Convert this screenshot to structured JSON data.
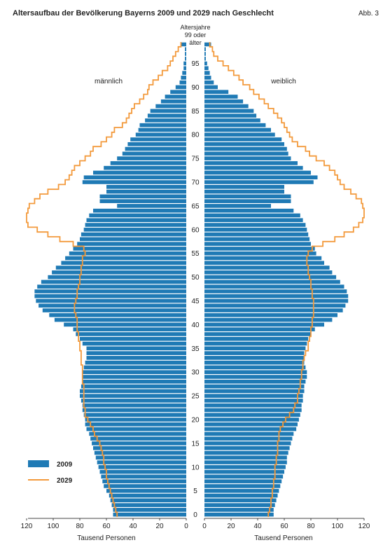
{
  "chart_data": {
    "type": "population-pyramid",
    "title": "Altersaufbau der Bevölkerung Bayerns 2009 und 2029 nach Geschlecht",
    "figure_label": "Abb. 3",
    "center_axis_label": [
      "Altersjahre",
      "99 oder",
      "älter"
    ],
    "left_label": "männlich",
    "right_label": "weiblich",
    "xlabel": "Tausend Personen",
    "x_ticks": [
      120,
      100,
      80,
      60,
      40,
      20,
      0
    ],
    "xlim": [
      0,
      120
    ],
    "age_ticks": [
      0,
      5,
      10,
      15,
      20,
      25,
      30,
      35,
      40,
      45,
      50,
      55,
      60,
      65,
      70,
      75,
      80,
      85,
      90,
      95
    ],
    "ages": [
      0,
      1,
      2,
      3,
      4,
      5,
      6,
      7,
      8,
      9,
      10,
      11,
      12,
      13,
      14,
      15,
      16,
      17,
      18,
      19,
      20,
      21,
      22,
      23,
      24,
      25,
      26,
      27,
      28,
      29,
      30,
      31,
      32,
      33,
      34,
      35,
      36,
      37,
      38,
      39,
      40,
      41,
      42,
      43,
      44,
      45,
      46,
      47,
      48,
      49,
      50,
      51,
      52,
      53,
      54,
      55,
      56,
      57,
      58,
      59,
      60,
      61,
      62,
      63,
      64,
      65,
      66,
      67,
      68,
      69,
      70,
      71,
      72,
      73,
      74,
      75,
      76,
      77,
      78,
      79,
      80,
      81,
      82,
      83,
      84,
      85,
      86,
      87,
      88,
      89,
      90,
      91,
      92,
      93,
      94,
      95,
      96,
      97,
      98,
      99
    ],
    "legend": [
      {
        "label": "2009",
        "color": "#1f7ab5"
      },
      {
        "label": "2029",
        "color": "#f39a3c"
      }
    ],
    "series": [
      {
        "name": "2009",
        "side": "männlich",
        "values": [
          55,
          55,
          56,
          57,
          58,
          60,
          62,
          63,
          64,
          65,
          66,
          67,
          68,
          69,
          70,
          71,
          72,
          73,
          75,
          76,
          76,
          77,
          78,
          78,
          79,
          80,
          80,
          79,
          78,
          78,
          78,
          77,
          76,
          75,
          75,
          75,
          78,
          80,
          83,
          85,
          92,
          99,
          103,
          108,
          111,
          113,
          114,
          114,
          112,
          109,
          104,
          101,
          98,
          94,
          91,
          88,
          85,
          82,
          80,
          79,
          77,
          76,
          75,
          73,
          70,
          52,
          65,
          65,
          60,
          60,
          78,
          77,
          70,
          62,
          57,
          52,
          48,
          46,
          44,
          42,
          38,
          36,
          35,
          31,
          29,
          27,
          23,
          19,
          16,
          12,
          8,
          5,
          4,
          3,
          2,
          2,
          1,
          1,
          1,
          4
        ]
      },
      {
        "name": "2029",
        "side": "männlich",
        "values": [
          52,
          53,
          54,
          55,
          56,
          57,
          58,
          59,
          60,
          60,
          61,
          62,
          62,
          63,
          64,
          65,
          67,
          69,
          70,
          72,
          74,
          76,
          76,
          77,
          77,
          77,
          77,
          77,
          78,
          78,
          78,
          78,
          79,
          79,
          79,
          80,
          80,
          81,
          81,
          82,
          82,
          82,
          83,
          84,
          84,
          83,
          82,
          82,
          81,
          80,
          80,
          79,
          79,
          78,
          78,
          76,
          77,
          85,
          95,
          104,
          112,
          119,
          120,
          120,
          119,
          118,
          114,
          110,
          104,
          96,
          91,
          88,
          86,
          84,
          80,
          76,
          72,
          70,
          64,
          60,
          56,
          54,
          48,
          45,
          43,
          41,
          39,
          35,
          32,
          29,
          28,
          25,
          21,
          18,
          14,
          12,
          10,
          8,
          6,
          4
        ]
      },
      {
        "name": "2009",
        "side": "weiblich",
        "values": [
          52,
          52,
          53,
          54,
          55,
          56,
          57,
          58,
          59,
          60,
          61,
          62,
          62,
          63,
          64,
          65,
          66,
          67,
          69,
          70,
          71,
          72,
          73,
          73,
          74,
          74,
          75,
          75,
          76,
          77,
          77,
          76,
          75,
          75,
          75,
          76,
          77,
          78,
          80,
          83,
          90,
          96,
          100,
          104,
          106,
          108,
          108,
          107,
          105,
          102,
          99,
          96,
          94,
          90,
          88,
          84,
          83,
          80,
          79,
          78,
          77,
          76,
          74,
          72,
          67,
          50,
          65,
          65,
          60,
          60,
          82,
          85,
          80,
          74,
          70,
          65,
          63,
          62,
          60,
          58,
          53,
          50,
          46,
          42,
          39,
          37,
          33,
          29,
          25,
          18,
          10,
          7,
          5,
          4,
          3,
          2,
          1,
          1,
          1,
          5
        ]
      },
      {
        "name": "2029",
        "side": "weiblich",
        "values": [
          48,
          49,
          50,
          50,
          51,
          51,
          52,
          52,
          53,
          53,
          53,
          54,
          54,
          55,
          55,
          55,
          56,
          56,
          57,
          59,
          61,
          64,
          67,
          68,
          70,
          70,
          71,
          72,
          72,
          73,
          73,
          74,
          74,
          75,
          76,
          78,
          78,
          79,
          80,
          80,
          81,
          81,
          82,
          82,
          82,
          82,
          81,
          81,
          80,
          80,
          79,
          78,
          78,
          77,
          77,
          78,
          81,
          89,
          98,
          105,
          112,
          116,
          119,
          120,
          120,
          119,
          118,
          114,
          110,
          105,
          102,
          100,
          98,
          94,
          90,
          84,
          79,
          76,
          70,
          66,
          64,
          62,
          60,
          58,
          55,
          52,
          48,
          45,
          41,
          37,
          34,
          29,
          26,
          22,
          18,
          14,
          10,
          7,
          6,
          4
        ]
      }
    ]
  }
}
